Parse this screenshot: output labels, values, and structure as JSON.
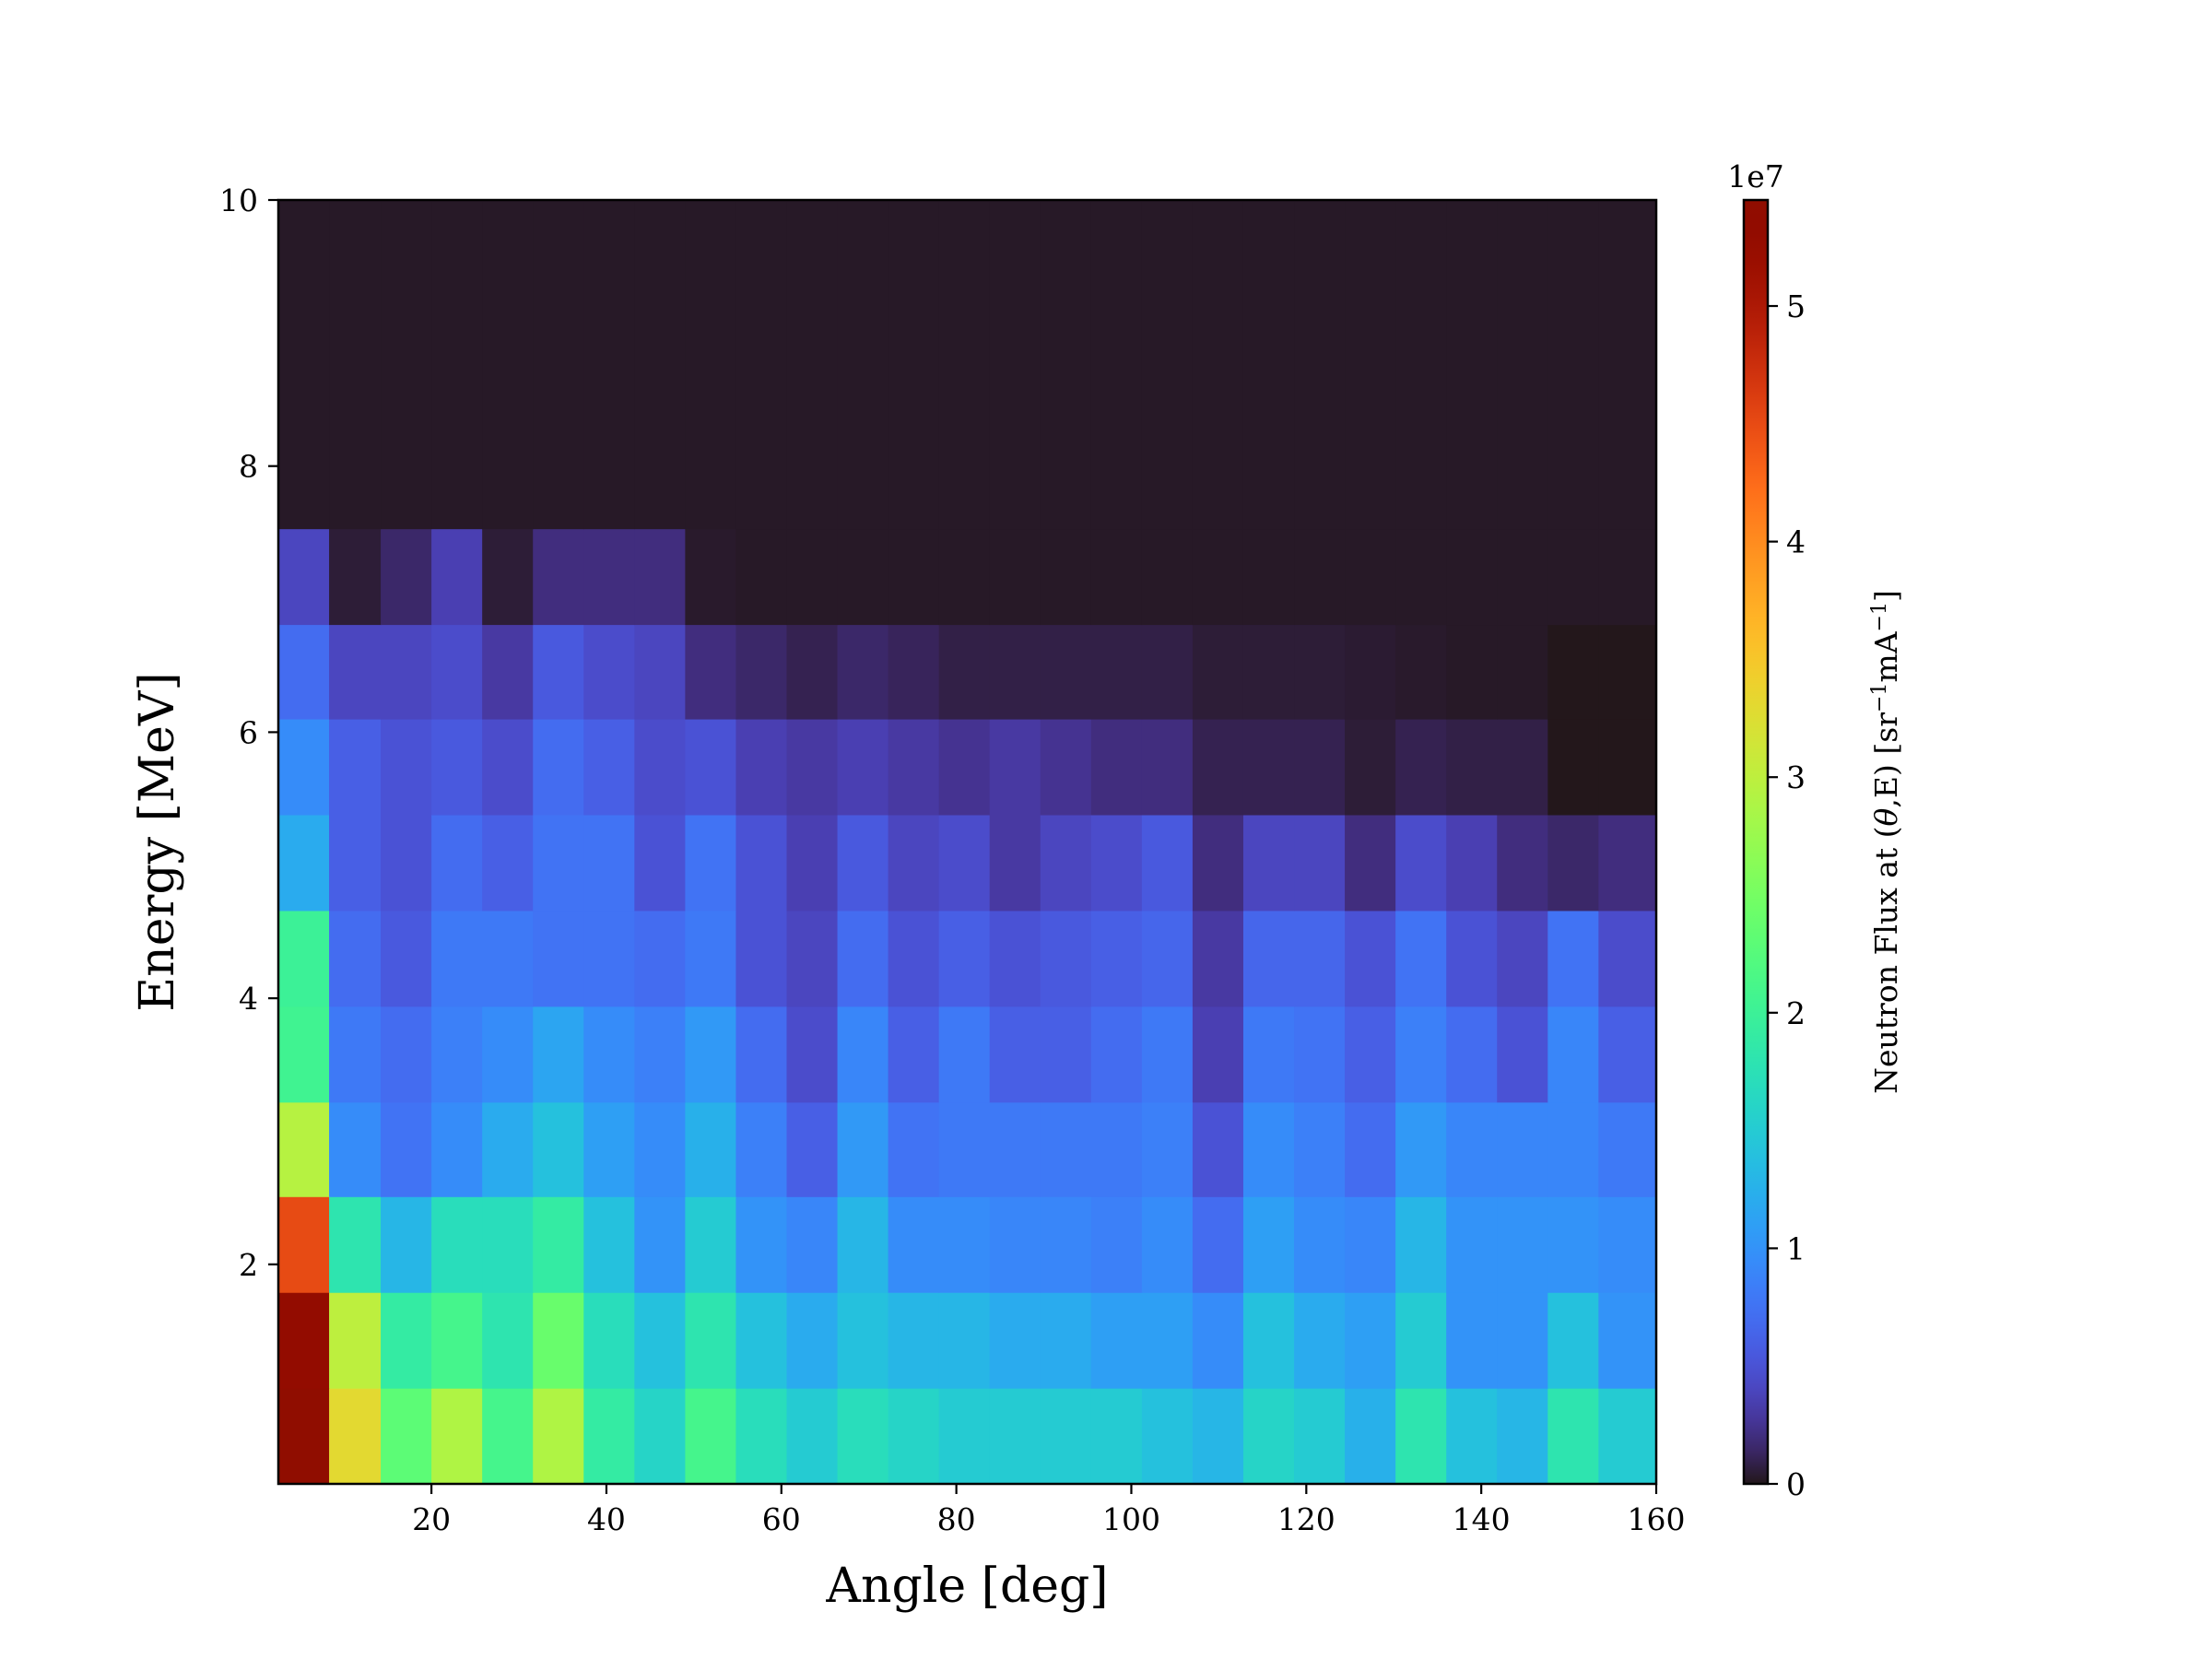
{
  "chart_data": {
    "type": "heatmap",
    "title": "",
    "xlabel": "Angle [deg]",
    "ylabel": "Energy [MeV]",
    "colorbar_label_parts": [
      "Neutron Flux at (",
      "θ",
      ",E) [sr",
      "−1",
      "mA",
      "−1",
      "]"
    ],
    "colorbar_offset_text": "1e7",
    "colormap": "turbo",
    "xlim": [
      2.5,
      160
    ],
    "ylim": [
      0.35,
      10
    ],
    "clim": [
      0,
      5.45
    ],
    "x_ticks": [
      20,
      40,
      60,
      80,
      100,
      120,
      140,
      160
    ],
    "y_ticks": [
      2,
      4,
      6,
      8,
      10
    ],
    "colorbar_ticks": [
      0,
      1,
      2,
      3,
      4,
      5
    ],
    "x_edges": [
      2.5,
      8.3,
      14.2,
      20,
      25.8,
      31.6,
      37.4,
      43.2,
      49,
      54.8,
      60.6,
      66.4,
      72.2,
      78,
      83.8,
      89.6,
      95.4,
      101.2,
      107,
      112.8,
      118.6,
      124.4,
      130.2,
      136,
      141.8,
      147.6,
      153.4,
      160
    ],
    "y_edges": [
      0.35,
      1.07,
      1.79,
      2.51,
      3.22,
      3.94,
      4.66,
      5.38,
      6.1,
      6.81,
      7.53,
      10
    ],
    "z_values_1e7": [
      [
        5.45,
        3.3,
        2.3,
        2.9,
        2.1,
        2.9,
        1.9,
        1.6,
        2.1,
        1.7,
        1.5,
        1.7,
        1.6,
        1.5,
        1.5,
        1.5,
        1.5,
        1.4,
        1.3,
        1.6,
        1.5,
        1.25,
        1.8,
        1.4,
        1.3,
        1.8,
        1.5
      ],
      [
        5.3,
        3.0,
        1.9,
        2.1,
        1.8,
        2.4,
        1.7,
        1.4,
        1.8,
        1.4,
        1.2,
        1.4,
        1.3,
        1.3,
        1.2,
        1.2,
        1.1,
        1.1,
        0.95,
        1.4,
        1.2,
        1.1,
        1.5,
        1.0,
        1.0,
        1.4,
        1.0
      ],
      [
        4.5,
        1.8,
        1.3,
        1.7,
        1.7,
        1.9,
        1.4,
        1.0,
        1.5,
        1.0,
        0.9,
        1.3,
        0.95,
        0.95,
        0.9,
        0.9,
        0.85,
        0.95,
        0.7,
        1.1,
        0.95,
        0.9,
        1.3,
        1.0,
        1.0,
        1.0,
        0.95
      ],
      [
        2.95,
        0.95,
        0.75,
        0.95,
        1.2,
        1.4,
        1.1,
        0.95,
        1.25,
        0.85,
        0.6,
        1.05,
        0.75,
        0.8,
        0.8,
        0.8,
        0.8,
        0.85,
        0.5,
        0.95,
        0.85,
        0.7,
        1.05,
        0.9,
        0.9,
        0.9,
        0.8
      ],
      [
        2.05,
        0.8,
        0.7,
        0.85,
        0.95,
        1.15,
        0.95,
        0.85,
        1.05,
        0.7,
        0.45,
        0.9,
        0.6,
        0.8,
        0.6,
        0.6,
        0.7,
        0.8,
        0.35,
        0.8,
        0.75,
        0.6,
        0.85,
        0.7,
        0.5,
        0.9,
        0.6
      ],
      [
        2.0,
        0.7,
        0.55,
        0.8,
        0.8,
        0.75,
        0.75,
        0.7,
        0.8,
        0.5,
        0.4,
        0.7,
        0.5,
        0.6,
        0.5,
        0.55,
        0.6,
        0.65,
        0.3,
        0.65,
        0.65,
        0.5,
        0.75,
        0.5,
        0.4,
        0.75,
        0.45
      ],
      [
        1.2,
        0.6,
        0.5,
        0.7,
        0.6,
        0.75,
        0.75,
        0.5,
        0.75,
        0.5,
        0.35,
        0.55,
        0.4,
        0.45,
        0.3,
        0.4,
        0.45,
        0.55,
        0.2,
        0.4,
        0.4,
        0.2,
        0.45,
        0.35,
        0.2,
        0.15,
        0.2
      ],
      [
        0.95,
        0.6,
        0.5,
        0.55,
        0.45,
        0.7,
        0.6,
        0.45,
        0.5,
        0.35,
        0.3,
        0.35,
        0.3,
        0.25,
        0.3,
        0.25,
        0.2,
        0.2,
        0.1,
        0.1,
        0.1,
        0.05,
        0.1,
        0.08,
        0.08,
        0.0,
        0.0
      ],
      [
        0.7,
        0.4,
        0.4,
        0.45,
        0.3,
        0.55,
        0.45,
        0.4,
        0.2,
        0.15,
        0.1,
        0.15,
        0.12,
        0.08,
        0.08,
        0.08,
        0.08,
        0.08,
        0.05,
        0.05,
        0.05,
        0.04,
        0.03,
        0.02,
        0.02,
        0.0,
        0.0
      ],
      [
        0.4,
        0.05,
        0.15,
        0.35,
        0.05,
        0.2,
        0.2,
        0.2,
        0.03,
        0.02,
        0.02,
        0.02,
        0.02,
        0.02,
        0.02,
        0.02,
        0.02,
        0.02,
        0.02,
        0.02,
        0.02,
        0.02,
        0.02,
        0.02,
        0.02,
        0.02,
        0.02
      ],
      [
        0.02,
        0.02,
        0.02,
        0.02,
        0.02,
        0.02,
        0.02,
        0.02,
        0.02,
        0.02,
        0.02,
        0.02,
        0.02,
        0.02,
        0.02,
        0.02,
        0.02,
        0.02,
        0.02,
        0.02,
        0.02,
        0.02,
        0.02,
        0.02,
        0.02,
        0.02,
        0.02
      ]
    ],
    "grid": false,
    "legend": "none"
  }
}
